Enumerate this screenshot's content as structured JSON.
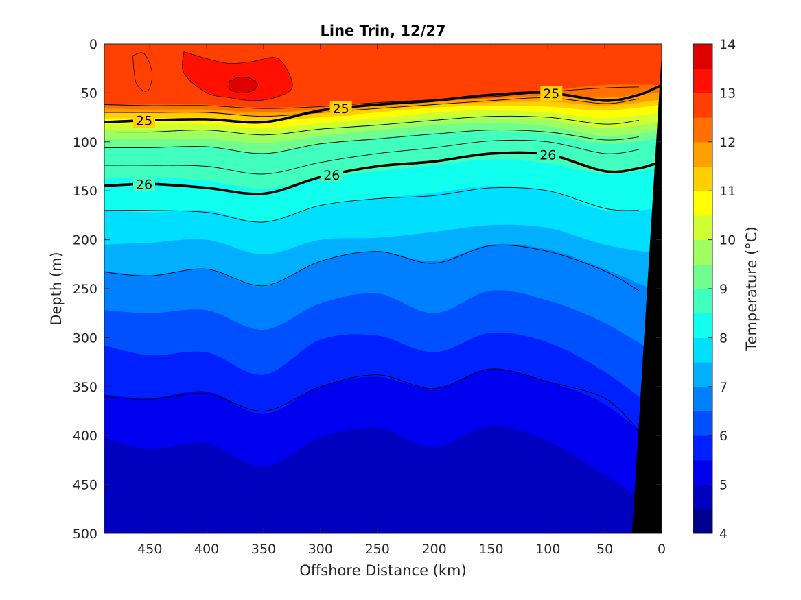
{
  "chart_data": {
    "type": "heatmap",
    "subtype": "filled-contour",
    "title": "Line Trin, 12/27",
    "xlabel": "Offshore Distance (km)",
    "ylabel": "Depth (m)",
    "colorbar_label": "Temperature (°C)",
    "xlim": [
      490,
      0
    ],
    "x_reversed": true,
    "ylim": [
      0,
      500
    ],
    "y_reversed": true,
    "x_ticks": [
      450,
      400,
      350,
      300,
      250,
      200,
      150,
      100,
      50,
      0
    ],
    "x_tick_labels": [
      "450",
      "400",
      "350",
      "300",
      "250",
      "200",
      "150",
      "100",
      "50",
      "0"
    ],
    "y_ticks": [
      0,
      50,
      100,
      150,
      200,
      250,
      300,
      350,
      400,
      450,
      500
    ],
    "y_tick_labels": [
      "0",
      "50",
      "100",
      "150",
      "200",
      "250",
      "300",
      "350",
      "400",
      "450",
      "500"
    ],
    "colorbar_ticks": [
      4,
      5,
      6,
      7,
      8,
      9,
      10,
      11,
      12,
      13,
      14
    ],
    "colorbar_tick_labels": [
      "4",
      "5",
      "6",
      "7",
      "8",
      "9",
      "10",
      "11",
      "12",
      "13",
      "14"
    ],
    "levels": [
      4,
      4.5,
      5,
      5.5,
      6,
      6.5,
      7,
      7.5,
      8,
      8.5,
      9,
      9.5,
      10,
      10.5,
      11,
      11.5,
      12,
      12.5,
      13,
      13.5,
      14
    ],
    "colormap": [
      "#00008f",
      "#0000bf",
      "#0000f0",
      "#0020ff",
      "#0050ff",
      "#0080ff",
      "#00b0ff",
      "#00dfff",
      "#10ffef",
      "#40ffbf",
      "#70ff8f",
      "#9fff60",
      "#cfff30",
      "#ffff00",
      "#ffcf00",
      "#ff9f00",
      "#ff7000",
      "#ff4000",
      "#ff1000",
      "#df0000",
      "#af0000"
    ],
    "temperature_isotherms": [
      {
        "temp": 12.5,
        "x": [
          490,
          450,
          400,
          350,
          300,
          250,
          200,
          150,
          100,
          50,
          0
        ],
        "depth": [
          62,
          62,
          62,
          65,
          63,
          60,
          58,
          55,
          48,
          42,
          42
        ]
      },
      {
        "temp": 12.0,
        "x": [
          490,
          450,
          400,
          350,
          300,
          250,
          200,
          150,
          100,
          50,
          0
        ],
        "depth": [
          66,
          67,
          67,
          70,
          67,
          62,
          59,
          56,
          53,
          55,
          49
        ]
      },
      {
        "temp": 11.5,
        "x": [
          490,
          450,
          400,
          350,
          300,
          250,
          200,
          150,
          100,
          50,
          0
        ],
        "depth": [
          70,
          71,
          71,
          74,
          71,
          66,
          62,
          60,
          59,
          63,
          57
        ]
      },
      {
        "temp": 11.0,
        "x": [
          490,
          450,
          400,
          350,
          300,
          250,
          200,
          150,
          100,
          50,
          0
        ],
        "depth": [
          76,
          76,
          76,
          79,
          75,
          70,
          65,
          63,
          64,
          68,
          62
        ]
      },
      {
        "temp": 10.5,
        "x": [
          490,
          450,
          400,
          350,
          300,
          250,
          200,
          150,
          100,
          50,
          0
        ],
        "depth": [
          82,
          82,
          82,
          86,
          81,
          76,
          70,
          68,
          70,
          76,
          70
        ]
      },
      {
        "temp": 10.0,
        "x": [
          490,
          450,
          400,
          350,
          300,
          250,
          200,
          150,
          100,
          50,
          0
        ],
        "depth": [
          88,
          88,
          88,
          93,
          86,
          82,
          76,
          74,
          77,
          86,
          80
        ]
      },
      {
        "temp": 9.5,
        "x": [
          490,
          450,
          400,
          350,
          300,
          250,
          200,
          150,
          100,
          50,
          0
        ],
        "depth": [
          97,
          97,
          97,
          101,
          94,
          88,
          83,
          81,
          84,
          94,
          88
        ]
      },
      {
        "temp": 9.0,
        "x": [
          490,
          450,
          400,
          350,
          300,
          250,
          200,
          150,
          100,
          50,
          0
        ],
        "depth": [
          106,
          106,
          105,
          111,
          102,
          96,
          91,
          89,
          92,
          102,
          96
        ]
      },
      {
        "temp": 8.5,
        "x": [
          490,
          450,
          400,
          350,
          300,
          250,
          200,
          150,
          100,
          50,
          0
        ],
        "depth": [
          138,
          136,
          140,
          148,
          138,
          130,
          124,
          118,
          122,
          133,
          127
        ]
      },
      {
        "temp": 8.0,
        "x": [
          490,
          450,
          400,
          350,
          300,
          250,
          200,
          150,
          100,
          50,
          0
        ],
        "depth": [
          170,
          172,
          170,
          182,
          166,
          158,
          152,
          145,
          150,
          170,
          168
        ]
      },
      {
        "temp": 7.5,
        "x": [
          490,
          450,
          400,
          350,
          300,
          250,
          200,
          150,
          100,
          50,
          0
        ],
        "depth": [
          205,
          203,
          200,
          215,
          200,
          198,
          192,
          185,
          188,
          205,
          215
        ]
      },
      {
        "temp": 7.0,
        "x": [
          490,
          450,
          400,
          350,
          300,
          250,
          200,
          150,
          100,
          50,
          0
        ],
        "depth": [
          232,
          236,
          230,
          248,
          222,
          212,
          222,
          205,
          210,
          230,
          255
        ]
      },
      {
        "temp": 6.5,
        "x": [
          490,
          450,
          400,
          350,
          300,
          250,
          200,
          150,
          100,
          50,
          0
        ],
        "depth": [
          272,
          275,
          272,
          292,
          265,
          255,
          275,
          252,
          262,
          285,
          320
        ]
      },
      {
        "temp": 6.0,
        "x": [
          490,
          450,
          400,
          350,
          300,
          250,
          200,
          150,
          100,
          50,
          0
        ],
        "depth": [
          308,
          318,
          315,
          338,
          302,
          298,
          315,
          295,
          305,
          335,
          378
        ]
      },
      {
        "temp": 5.5,
        "x": [
          490,
          450,
          400,
          350,
          300,
          250,
          200,
          150,
          100,
          50,
          0
        ],
        "depth": [
          358,
          362,
          355,
          378,
          350,
          340,
          352,
          332,
          345,
          368,
          415
        ]
      },
      {
        "temp": 5.0,
        "x": [
          490,
          450,
          400,
          350,
          300,
          250,
          200,
          150,
          100,
          50,
          0
        ],
        "depth": [
          402,
          414,
          408,
          432,
          402,
          392,
          412,
          390,
          406,
          440,
          480
        ]
      }
    ],
    "warm_core_13": {
      "x": [
        420,
        400,
        380,
        360,
        340,
        330,
        325,
        340,
        360,
        380,
        400,
        420
      ],
      "depth": [
        8,
        15,
        20,
        18,
        14,
        25,
        45,
        55,
        58,
        55,
        50,
        30
      ]
    },
    "warm_core_13_5": {
      "x": [
        380,
        370,
        360,
        355,
        360,
        370,
        380
      ],
      "depth": [
        38,
        34,
        36,
        42,
        48,
        50,
        46
      ]
    },
    "warm_patch_12_5": {
      "x": [
        465,
        455,
        448,
        452,
        462
      ],
      "depth": [
        12,
        10,
        30,
        48,
        40
      ]
    },
    "isopycnals": [
      {
        "label": "25",
        "bold": true,
        "x": [
          490,
          450,
          400,
          350,
          300,
          250,
          200,
          150,
          100,
          50,
          20,
          0
        ],
        "depth": [
          80,
          78,
          77,
          80,
          68,
          62,
          58,
          52,
          50,
          58,
          52,
          42
        ]
      },
      {
        "label": "26",
        "bold": true,
        "x": [
          490,
          450,
          400,
          350,
          300,
          250,
          200,
          150,
          100,
          50,
          20,
          0
        ],
        "depth": [
          145,
          143,
          147,
          153,
          136,
          125,
          120,
          112,
          113,
          130,
          127,
          120
        ]
      }
    ],
    "thin_contours": [
      {
        "x": [
          490,
          450,
          400,
          350,
          300,
          250,
          200,
          150,
          100,
          50,
          20
        ],
        "depth": [
          62,
          63,
          63,
          66,
          64,
          60,
          57,
          54,
          49,
          45,
          44
        ]
      },
      {
        "x": [
          490,
          450,
          400,
          350,
          300,
          250,
          200,
          150,
          100,
          50,
          20
        ],
        "depth": [
          70,
          70,
          70,
          74,
          70,
          66,
          62,
          58,
          55,
          61,
          56
        ]
      },
      {
        "x": [
          490,
          450,
          400,
          350,
          300,
          250,
          200,
          150,
          100,
          50,
          20
        ],
        "depth": [
          90,
          90,
          88,
          93,
          87,
          83,
          78,
          74,
          75,
          82,
          78
        ]
      },
      {
        "x": [
          490,
          450,
          400,
          350,
          300,
          250,
          200,
          150,
          100,
          50,
          20
        ],
        "depth": [
          106,
          106,
          105,
          112,
          102,
          97,
          92,
          88,
          90,
          98,
          95
        ]
      },
      {
        "x": [
          490,
          450,
          400,
          350,
          300,
          250,
          200,
          150,
          100,
          50,
          20
        ],
        "depth": [
          124,
          124,
          125,
          133,
          121,
          112,
          106,
          99,
          100,
          112,
          108
        ]
      },
      {
        "x": [
          490,
          450,
          400,
          350,
          300,
          250,
          200,
          150,
          100,
          50,
          20
        ],
        "depth": [
          170,
          170,
          172,
          182,
          165,
          158,
          155,
          147,
          150,
          168,
          170
        ]
      },
      {
        "x": [
          490,
          450,
          400,
          350,
          300,
          250,
          200,
          150,
          100,
          50,
          20
        ],
        "depth": [
          233,
          237,
          230,
          247,
          222,
          212,
          224,
          206,
          212,
          232,
          252
        ]
      },
      {
        "x": [
          490,
          450,
          400,
          350,
          300,
          250,
          200,
          150,
          100,
          50,
          20
        ],
        "depth": [
          360,
          363,
          357,
          375,
          350,
          338,
          352,
          332,
          345,
          362,
          395
        ]
      }
    ],
    "bathymetry_mask": {
      "x": [
        0,
        0,
        26
      ],
      "depth": [
        500,
        10,
        500
      ]
    }
  }
}
